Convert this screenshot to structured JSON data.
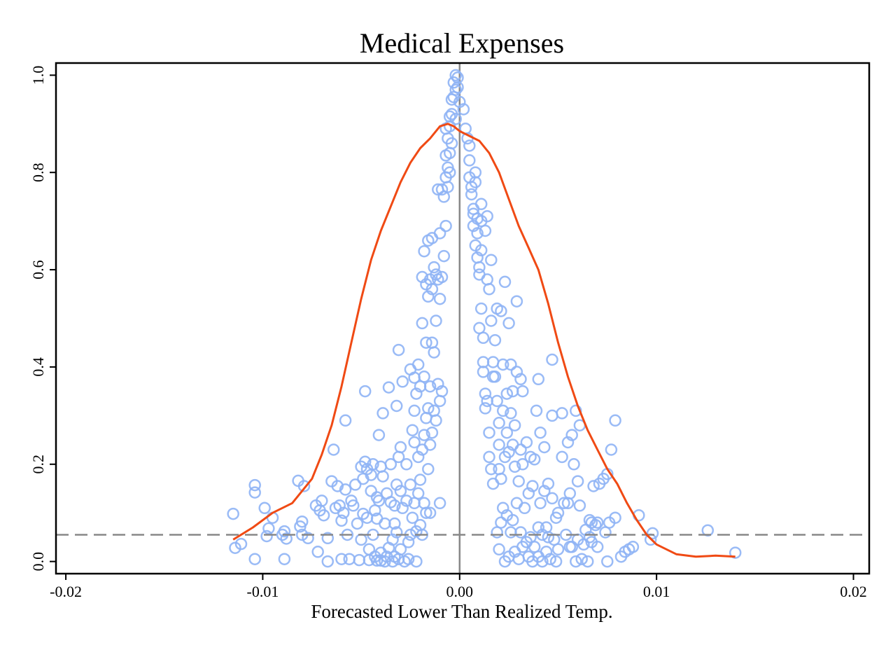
{
  "chart_data": {
    "type": "scatter",
    "title": "Medical Expenses",
    "xlabel": "Forecasted Lower Than Realized Temp.",
    "ylabel": "",
    "xlim": [
      -0.0205,
      0.0208
    ],
    "ylim": [
      -0.025,
      1.025
    ],
    "x_ticks": [
      -0.02,
      -0.01,
      0.0,
      0.01,
      0.02
    ],
    "x_tick_labels": [
      "-0.02",
      "-0.01",
      "0.00",
      "0.01",
      "0.02"
    ],
    "y_ticks": [
      0.0,
      0.2,
      0.4,
      0.6,
      0.8,
      1.0
    ],
    "y_tick_labels": [
      "0.0",
      "0.2",
      "0.4",
      "0.6",
      "0.8",
      "1.0"
    ],
    "grid": false,
    "legend": "none",
    "vertical_reference_x": 0.0,
    "horizontal_reference_y": 0.055,
    "colors": {
      "points": "#8fb4f5",
      "curve": "#f04a14",
      "vline": "#888888",
      "hline": "#888888"
    },
    "curve": {
      "name": "",
      "x": [
        -0.0115,
        -0.0105,
        -0.0095,
        -0.0085,
        -0.0075,
        -0.007,
        -0.0065,
        -0.006,
        -0.0055,
        -0.005,
        -0.0045,
        -0.004,
        -0.0035,
        -0.003,
        -0.0025,
        -0.002,
        -0.0015,
        -0.001,
        -0.0006,
        -0.0003,
        0.0,
        0.0005,
        0.001,
        0.0015,
        0.002,
        0.0025,
        0.003,
        0.0035,
        0.004,
        0.0045,
        0.005,
        0.0055,
        0.006,
        0.0065,
        0.007,
        0.0075,
        0.008,
        0.0085,
        0.009,
        0.0095,
        0.01,
        0.011,
        0.012,
        0.013,
        0.014
      ],
      "y": [
        0.045,
        0.07,
        0.1,
        0.12,
        0.17,
        0.22,
        0.28,
        0.36,
        0.45,
        0.54,
        0.62,
        0.68,
        0.73,
        0.78,
        0.82,
        0.85,
        0.87,
        0.895,
        0.9,
        0.895,
        0.885,
        0.875,
        0.865,
        0.84,
        0.8,
        0.745,
        0.69,
        0.645,
        0.6,
        0.53,
        0.45,
        0.38,
        0.32,
        0.27,
        0.23,
        0.19,
        0.16,
        0.12,
        0.085,
        0.055,
        0.035,
        0.015,
        0.01,
        0.012,
        0.01
      ]
    },
    "points": [
      [
        -0.0115,
        0.098
      ],
      [
        -0.0114,
        0.028
      ],
      [
        -0.0111,
        0.036
      ],
      [
        -0.0104,
        0.157
      ],
      [
        -0.0104,
        0.142
      ],
      [
        -0.0104,
        0.005
      ],
      [
        -0.0099,
        0.11
      ],
      [
        -0.0098,
        0.052
      ],
      [
        -0.0097,
        0.068
      ],
      [
        -0.0095,
        0.09
      ],
      [
        -0.009,
        0.055
      ],
      [
        -0.0089,
        0.062
      ],
      [
        -0.0088,
        0.047
      ],
      [
        -0.0089,
        0.005
      ],
      [
        -0.0082,
        0.166
      ],
      [
        -0.0081,
        0.072
      ],
      [
        -0.008,
        0.055
      ],
      [
        -0.008,
        0.082
      ],
      [
        -0.0079,
        0.155
      ],
      [
        -0.0077,
        0.048
      ],
      [
        -0.0073,
        0.115
      ],
      [
        -0.0072,
        0.02
      ],
      [
        -0.0071,
        0.105
      ],
      [
        -0.007,
        0.125
      ],
      [
        -0.0069,
        0.095
      ],
      [
        -0.0067,
        0.048
      ],
      [
        -0.0067,
        0.0
      ],
      [
        -0.0065,
        0.165
      ],
      [
        -0.0064,
        0.23
      ],
      [
        -0.0063,
        0.11
      ],
      [
        -0.0062,
        0.155
      ],
      [
        -0.0061,
        0.115
      ],
      [
        -0.006,
        0.084
      ],
      [
        -0.006,
        0.005
      ],
      [
        -0.0059,
        0.1
      ],
      [
        -0.0058,
        0.148
      ],
      [
        -0.0058,
        0.29
      ],
      [
        -0.0057,
        0.055
      ],
      [
        -0.0056,
        0.005
      ],
      [
        -0.0055,
        0.125
      ],
      [
        -0.0054,
        0.115
      ],
      [
        -0.0053,
        0.158
      ],
      [
        -0.0052,
        0.078
      ],
      [
        -0.0051,
        0.003
      ],
      [
        -0.005,
        0.195
      ],
      [
        -0.005,
        0.045
      ],
      [
        -0.0049,
        0.17
      ],
      [
        -0.0049,
        0.098
      ],
      [
        -0.0048,
        0.205
      ],
      [
        -0.0048,
        0.35
      ],
      [
        -0.0047,
        0.19
      ],
      [
        -0.0047,
        0.09
      ],
      [
        -0.0046,
        0.025
      ],
      [
        -0.0046,
        0.003
      ],
      [
        -0.0045,
        0.178
      ],
      [
        -0.0045,
        0.145
      ],
      [
        -0.0044,
        0.2
      ],
      [
        -0.0044,
        0.055
      ],
      [
        -0.0043,
        0.105
      ],
      [
        -0.0043,
        0.01
      ],
      [
        -0.0042,
        0.088
      ],
      [
        -0.0042,
        0.002
      ],
      [
        -0.0042,
        0.132
      ],
      [
        -0.0041,
        0.26
      ],
      [
        -0.0041,
        0.125
      ],
      [
        -0.004,
        0.195
      ],
      [
        -0.004,
        0.018
      ],
      [
        -0.004,
        0.002
      ],
      [
        -0.0039,
        0.305
      ],
      [
        -0.0039,
        0.175
      ],
      [
        -0.0038,
        0.078
      ],
      [
        -0.0038,
        0.0
      ],
      [
        -0.0037,
        0.01
      ],
      [
        -0.0037,
        0.14
      ],
      [
        -0.0036,
        0.358
      ],
      [
        -0.0036,
        0.028
      ],
      [
        -0.0035,
        0.2
      ],
      [
        -0.0035,
        0.122
      ],
      [
        -0.0034,
        0.0
      ],
      [
        -0.0034,
        0.045
      ],
      [
        -0.0033,
        0.115
      ],
      [
        -0.0033,
        0.078
      ],
      [
        -0.0033,
        0.01
      ],
      [
        -0.0032,
        0.32
      ],
      [
        -0.0032,
        0.158
      ],
      [
        -0.0032,
        0.06
      ],
      [
        -0.0031,
        0.435
      ],
      [
        -0.0031,
        0.215
      ],
      [
        -0.0031,
        0.005
      ],
      [
        -0.003,
        0.235
      ],
      [
        -0.003,
        0.145
      ],
      [
        -0.003,
        0.025
      ],
      [
        -0.0029,
        0.37
      ],
      [
        -0.0029,
        0.11
      ],
      [
        -0.0028,
        0.0
      ],
      [
        -0.0027,
        0.2
      ],
      [
        -0.0027,
        0.125
      ],
      [
        -0.0026,
        0.04
      ],
      [
        -0.0026,
        0.005
      ],
      [
        -0.0025,
        0.395
      ],
      [
        -0.0025,
        0.158
      ],
      [
        -0.0025,
        0.055
      ],
      [
        -0.0024,
        0.27
      ],
      [
        -0.0024,
        0.09
      ],
      [
        -0.0023,
        0.378
      ],
      [
        -0.0023,
        0.31
      ],
      [
        -0.0023,
        0.245
      ],
      [
        -0.0023,
        0.12
      ],
      [
        -0.0022,
        0.345
      ],
      [
        -0.0022,
        0.062
      ],
      [
        -0.0022,
        0.0
      ],
      [
        -0.0021,
        0.405
      ],
      [
        -0.0021,
        0.215
      ],
      [
        -0.0021,
        0.14
      ],
      [
        -0.002,
        0.36
      ],
      [
        -0.002,
        0.168
      ],
      [
        -0.002,
        0.075
      ],
      [
        -0.0019,
        0.585
      ],
      [
        -0.0019,
        0.49
      ],
      [
        -0.0019,
        0.23
      ],
      [
        -0.0019,
        0.055
      ],
      [
        -0.0018,
        0.638
      ],
      [
        -0.0018,
        0.38
      ],
      [
        -0.0018,
        0.26
      ],
      [
        -0.0018,
        0.12
      ],
      [
        -0.0017,
        0.57
      ],
      [
        -0.0017,
        0.45
      ],
      [
        -0.0017,
        0.295
      ],
      [
        -0.0017,
        0.1
      ],
      [
        -0.0016,
        0.66
      ],
      [
        -0.0016,
        0.545
      ],
      [
        -0.0016,
        0.315
      ],
      [
        -0.0016,
        0.19
      ],
      [
        -0.0015,
        0.58
      ],
      [
        -0.0015,
        0.36
      ],
      [
        -0.0015,
        0.24
      ],
      [
        -0.0015,
        0.1
      ],
      [
        -0.0014,
        0.665
      ],
      [
        -0.0014,
        0.56
      ],
      [
        -0.0014,
        0.45
      ],
      [
        -0.0014,
        0.265
      ],
      [
        -0.0013,
        0.605
      ],
      [
        -0.0013,
        0.43
      ],
      [
        -0.0013,
        0.31
      ],
      [
        -0.0012,
        0.59
      ],
      [
        -0.0012,
        0.495
      ],
      [
        -0.0012,
        0.29
      ],
      [
        -0.0011,
        0.765
      ],
      [
        -0.0011,
        0.58
      ],
      [
        -0.0011,
        0.365
      ],
      [
        -0.001,
        0.675
      ],
      [
        -0.001,
        0.54
      ],
      [
        -0.001,
        0.33
      ],
      [
        -0.001,
        0.12
      ],
      [
        -0.0009,
        0.765
      ],
      [
        -0.0009,
        0.585
      ],
      [
        -0.0009,
        0.35
      ],
      [
        -0.0008,
        0.75
      ],
      [
        -0.0008,
        0.628
      ],
      [
        -0.0007,
        0.89
      ],
      [
        -0.0007,
        0.835
      ],
      [
        -0.0007,
        0.79
      ],
      [
        -0.0007,
        0.69
      ],
      [
        -0.0006,
        0.87
      ],
      [
        -0.0006,
        0.81
      ],
      [
        -0.0006,
        0.77
      ],
      [
        -0.0005,
        0.915
      ],
      [
        -0.0005,
        0.895
      ],
      [
        -0.0005,
        0.84
      ],
      [
        -0.0005,
        0.8
      ],
      [
        -0.0004,
        0.95
      ],
      [
        -0.0004,
        0.92
      ],
      [
        -0.0004,
        0.86
      ],
      [
        -0.0003,
        0.985
      ],
      [
        -0.0003,
        0.955
      ],
      [
        -0.0002,
        1.0
      ],
      [
        -0.0002,
        0.97
      ],
      [
        -0.0002,
        0.91
      ],
      [
        -0.0001,
        0.995
      ],
      [
        -0.0001,
        0.975
      ],
      [
        0.0,
        0.945
      ],
      [
        0.0002,
        0.93
      ],
      [
        0.0003,
        0.89
      ],
      [
        0.0004,
        0.87
      ],
      [
        0.0005,
        0.855
      ],
      [
        0.0005,
        0.825
      ],
      [
        0.0005,
        0.79
      ],
      [
        0.0006,
        0.77
      ],
      [
        0.0006,
        0.755
      ],
      [
        0.0007,
        0.725
      ],
      [
        0.0007,
        0.715
      ],
      [
        0.0007,
        0.69
      ],
      [
        0.0008,
        0.8
      ],
      [
        0.0008,
        0.78
      ],
      [
        0.0008,
        0.65
      ],
      [
        0.0009,
        0.705
      ],
      [
        0.0009,
        0.675
      ],
      [
        0.0009,
        0.625
      ],
      [
        0.001,
        0.605
      ],
      [
        0.001,
        0.59
      ],
      [
        0.001,
        0.48
      ],
      [
        0.0011,
        0.735
      ],
      [
        0.0011,
        0.7
      ],
      [
        0.0011,
        0.64
      ],
      [
        0.0011,
        0.52
      ],
      [
        0.0012,
        0.46
      ],
      [
        0.0012,
        0.41
      ],
      [
        0.0012,
        0.39
      ],
      [
        0.0013,
        0.68
      ],
      [
        0.0013,
        0.345
      ],
      [
        0.0013,
        0.315
      ],
      [
        0.0014,
        0.71
      ],
      [
        0.0014,
        0.58
      ],
      [
        0.0014,
        0.33
      ],
      [
        0.0015,
        0.56
      ],
      [
        0.0015,
        0.265
      ],
      [
        0.0015,
        0.215
      ],
      [
        0.0016,
        0.62
      ],
      [
        0.0016,
        0.495
      ],
      [
        0.0016,
        0.19
      ],
      [
        0.0017,
        0.41
      ],
      [
        0.0017,
        0.38
      ],
      [
        0.0017,
        0.16
      ],
      [
        0.0018,
        0.455
      ],
      [
        0.0018,
        0.38
      ],
      [
        0.0019,
        0.52
      ],
      [
        0.0019,
        0.33
      ],
      [
        0.0019,
        0.06
      ],
      [
        0.002,
        0.285
      ],
      [
        0.002,
        0.24
      ],
      [
        0.002,
        0.19
      ],
      [
        0.002,
        0.025
      ],
      [
        0.0021,
        0.515
      ],
      [
        0.0021,
        0.17
      ],
      [
        0.0021,
        0.08
      ],
      [
        0.0022,
        0.405
      ],
      [
        0.0022,
        0.31
      ],
      [
        0.0022,
        0.11
      ],
      [
        0.0023,
        0.575
      ],
      [
        0.0023,
        0.215
      ],
      [
        0.0023,
        0.0
      ],
      [
        0.0024,
        0.345
      ],
      [
        0.0024,
        0.265
      ],
      [
        0.0024,
        0.095
      ],
      [
        0.0025,
        0.49
      ],
      [
        0.0025,
        0.225
      ],
      [
        0.0025,
        0.01
      ],
      [
        0.0026,
        0.405
      ],
      [
        0.0026,
        0.305
      ],
      [
        0.0026,
        0.06
      ],
      [
        0.0027,
        0.35
      ],
      [
        0.0027,
        0.24
      ],
      [
        0.0027,
        0.085
      ],
      [
        0.0028,
        0.28
      ],
      [
        0.0028,
        0.195
      ],
      [
        0.0028,
        0.02
      ],
      [
        0.0029,
        0.535
      ],
      [
        0.0029,
        0.39
      ],
      [
        0.0029,
        0.12
      ],
      [
        0.003,
        0.165
      ],
      [
        0.003,
        0.005
      ],
      [
        0.0031,
        0.375
      ],
      [
        0.0031,
        0.23
      ],
      [
        0.0031,
        0.06
      ],
      [
        0.0032,
        0.35
      ],
      [
        0.0032,
        0.2
      ],
      [
        0.0032,
        0.03
      ],
      [
        0.0033,
        0.11
      ],
      [
        0.0034,
        0.245
      ],
      [
        0.0034,
        0.04
      ],
      [
        0.0035,
        0.14
      ],
      [
        0.0035,
        0.01
      ],
      [
        0.0036,
        0.215
      ],
      [
        0.0036,
        0.05
      ],
      [
        0.0037,
        0.155
      ],
      [
        0.0037,
        0.0
      ],
      [
        0.0038,
        0.21
      ],
      [
        0.0038,
        0.03
      ],
      [
        0.0039,
        0.31
      ],
      [
        0.004,
        0.375
      ],
      [
        0.004,
        0.07
      ],
      [
        0.004,
        0.01
      ],
      [
        0.0041,
        0.265
      ],
      [
        0.0041,
        0.12
      ],
      [
        0.0042,
        0.055
      ],
      [
        0.0042,
        0.0
      ],
      [
        0.0043,
        0.235
      ],
      [
        0.0043,
        0.145
      ],
      [
        0.0044,
        0.07
      ],
      [
        0.0044,
        0.02
      ],
      [
        0.0045,
        0.16
      ],
      [
        0.0045,
        0.05
      ],
      [
        0.0046,
        0.005
      ],
      [
        0.0047,
        0.415
      ],
      [
        0.0047,
        0.3
      ],
      [
        0.0047,
        0.13
      ],
      [
        0.0048,
        0.045
      ],
      [
        0.0049,
        0.09
      ],
      [
        0.0049,
        0.0
      ],
      [
        0.005,
        0.1
      ],
      [
        0.005,
        0.025
      ],
      [
        0.0052,
        0.305
      ],
      [
        0.0052,
        0.215
      ],
      [
        0.0053,
        0.12
      ],
      [
        0.0054,
        0.055
      ],
      [
        0.0055,
        0.245
      ],
      [
        0.0055,
        0.12
      ],
      [
        0.0056,
        0.14
      ],
      [
        0.0056,
        0.03
      ],
      [
        0.0057,
        0.26
      ],
      [
        0.0057,
        0.03
      ],
      [
        0.0058,
        0.2
      ],
      [
        0.0059,
        0.31
      ],
      [
        0.0059,
        0.0
      ],
      [
        0.006,
        0.165
      ],
      [
        0.006,
        0.045
      ],
      [
        0.0061,
        0.28
      ],
      [
        0.0061,
        0.115
      ],
      [
        0.0062,
        0.005
      ],
      [
        0.0063,
        0.035
      ],
      [
        0.0064,
        0.065
      ],
      [
        0.0065,
        0.0
      ],
      [
        0.0066,
        0.085
      ],
      [
        0.0066,
        0.05
      ],
      [
        0.0067,
        0.08
      ],
      [
        0.0067,
        0.04
      ],
      [
        0.0068,
        0.155
      ],
      [
        0.0069,
        0.075
      ],
      [
        0.007,
        0.08
      ],
      [
        0.007,
        0.03
      ],
      [
        0.0071,
        0.16
      ],
      [
        0.0073,
        0.17
      ],
      [
        0.0074,
        0.06
      ],
      [
        0.0075,
        0.0
      ],
      [
        0.0075,
        0.18
      ],
      [
        0.0076,
        0.08
      ],
      [
        0.0077,
        0.23
      ],
      [
        0.0079,
        0.29
      ],
      [
        0.0079,
        0.09
      ],
      [
        0.0082,
        0.01
      ],
      [
        0.0084,
        0.02
      ],
      [
        0.0086,
        0.025
      ],
      [
        0.0088,
        0.03
      ],
      [
        0.0091,
        0.095
      ],
      [
        0.0097,
        0.045
      ],
      [
        0.0098,
        0.058
      ],
      [
        0.0126,
        0.064
      ],
      [
        0.014,
        0.018
      ]
    ]
  }
}
